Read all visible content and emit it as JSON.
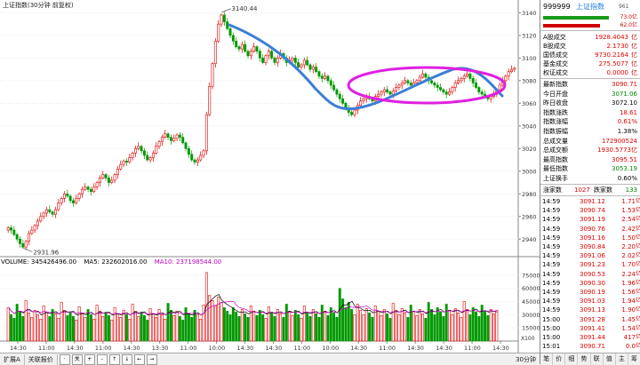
{
  "header": {
    "title": "上证指数(30分钟 前复权)"
  },
  "price_axis": [
    "3140",
    "3120",
    "3100",
    "3080",
    "3060",
    "3040",
    "3020",
    "3000",
    "2980",
    "2960",
    "2940"
  ],
  "annotations": {
    "high": "3140.44",
    "low": "2931.96"
  },
  "volume": {
    "label": "VOLUME: 345426496.00",
    "ma5": "MA5: 232602016.00",
    "ma10": "MA10: 237198544.00",
    "axis": [
      "75000",
      "60000",
      "45000",
      "30000",
      "15000"
    ],
    "unit": "X100"
  },
  "time_axis": [
    "14:30",
    "11:00",
    "14:30",
    "11:00",
    "14:30",
    "13:30",
    "11:00",
    "10:00",
    "14:30",
    "14:30",
    "11:00",
    "10:00",
    "14:30",
    "11:00",
    "14:30",
    "14:30",
    "11:00",
    "14:30"
  ],
  "bottom_bar": {
    "tabs": [
      "扩展A",
      "关联报价"
    ],
    "controls": [
      "·",
      "关",
      "+",
      "-",
      "↑",
      "↓",
      "←",
      "→"
    ],
    "period": "30分钟"
  },
  "quote": {
    "code": "999999",
    "name": "上证指数",
    "badge": "961",
    "bar_top": "73.0亿",
    "bar_bottom": "62.0亿",
    "turnover": [
      {
        "label": "A股成交",
        "value": "1928.4043",
        "unit": "亿"
      },
      {
        "label": "B股成交",
        "value": "2.1730",
        "unit": "亿"
      },
      {
        "label": "国债成交",
        "value": "9730.2164",
        "unit": "亿"
      },
      {
        "label": "基金成交",
        "value": "275.5077",
        "unit": "亿"
      },
      {
        "label": "权证成交",
        "value": "0.0000",
        "unit": "亿"
      }
    ],
    "stats": [
      {
        "label": "最新指数",
        "value": "3090.71",
        "color": "red"
      },
      {
        "label": "今日开盘",
        "value": "3071.06",
        "color": "green"
      },
      {
        "label": "昨日收盘",
        "value": "3072.10",
        "color": "black"
      },
      {
        "label": "指数涨跌",
        "value": "18.61",
        "color": "red"
      },
      {
        "label": "指数涨幅",
        "value": "0.61%",
        "color": "red"
      },
      {
        "label": "指数振幅",
        "value": "1.38%",
        "color": "black"
      },
      {
        "label": "总成交量",
        "value": "172900524",
        "color": "red"
      },
      {
        "label": "总成交额",
        "value": "1930.5773亿",
        "color": "red"
      },
      {
        "label": "最高指数",
        "value": "3095.51",
        "color": "red"
      },
      {
        "label": "最低指数",
        "value": "3053.19",
        "color": "green"
      },
      {
        "label": "上证换手",
        "value": "0.60%",
        "color": "black"
      }
    ],
    "breadth": {
      "up_label": "涨家数",
      "up": "1027",
      "down_label": "跌家数",
      "down": "133"
    },
    "ticks": [
      {
        "t": "14:59",
        "p": "3091.12",
        "v": "1.71"
      },
      {
        "t": "14:59",
        "p": "3090.74",
        "v": "1.53"
      },
      {
        "t": "14:59",
        "p": "3091.19",
        "v": "2.54"
      },
      {
        "t": "14:59",
        "p": "3090.76",
        "v": "2.42"
      },
      {
        "t": "14:59",
        "p": "3091.16",
        "v": "1.50"
      },
      {
        "t": "14:59",
        "p": "3090.84",
        "v": "2.20"
      },
      {
        "t": "14:59",
        "p": "3091.06",
        "v": "2.02"
      },
      {
        "t": "14:59",
        "p": "3091.23",
        "v": "1.70"
      },
      {
        "t": "14:59",
        "p": "3090.53",
        "v": "2.24"
      },
      {
        "t": "14:59",
        "p": "3090.30",
        "v": "1.96"
      },
      {
        "t": "14:59",
        "p": "3090.19",
        "v": "1.56"
      },
      {
        "t": "14:59",
        "p": "3091.03",
        "v": "1.94"
      },
      {
        "t": "14:59",
        "p": "3091.13",
        "v": "1.90"
      },
      {
        "t": "15:00",
        "p": "3091.28",
        "v": "1.45"
      },
      {
        "t": "15:00",
        "p": "3091.41",
        "v": "1.54"
      },
      {
        "t": "15:00",
        "p": "3091.44",
        "v": "417"
      },
      {
        "t": "15:01",
        "p": "3090.71",
        "v": "0.0"
      }
    ],
    "tick_unit": "亿",
    "bottom_tabs": [
      "笔",
      "价",
      "细",
      "势",
      "联",
      "值",
      "主",
      "筹"
    ]
  },
  "chart_data": {
    "type": "candlestick",
    "title": "上证指数(30分钟 前复权)",
    "period": "30分钟",
    "price_range": [
      2930,
      3145
    ],
    "volume_range": [
      0,
      85000
    ],
    "high": 3140.44,
    "low": 2931.96,
    "close_series": [
      2950,
      2948,
      2944,
      2940,
      2936,
      2933,
      2938,
      2945,
      2948,
      2952,
      2956,
      2960,
      2963,
      2966,
      2964,
      2962,
      2966,
      2972,
      2976,
      2980,
      2978,
      2974,
      2972,
      2976,
      2980,
      2984,
      2986,
      2984,
      2982,
      2986,
      2990,
      2994,
      2997,
      2994,
      2990,
      2992,
      2997,
      3002,
      3006,
      3009,
      3008,
      3012,
      3016,
      3020,
      3022,
      3018,
      3014,
      3010,
      3012,
      3016,
      3022,
      3026,
      3030,
      3033,
      3030,
      3027,
      3029,
      3032,
      3030,
      3025,
      3020,
      3015,
      3010,
      3008,
      3010,
      3014,
      3018,
      3050,
      3075,
      3095,
      3115,
      3130,
      3138,
      3132,
      3126,
      3120,
      3115,
      3110,
      3108,
      3112,
      3106,
      3102,
      3106,
      3110,
      3106,
      3100,
      3096,
      3102,
      3106,
      3100,
      3096,
      3100,
      3104,
      3100,
      3096,
      3098,
      3100,
      3096,
      3092,
      3094,
      3098,
      3094,
      3090,
      3092,
      3088,
      3084,
      3082,
      3084,
      3080,
      3076,
      3072,
      3068,
      3064,
      3060,
      3056,
      3052,
      3050,
      3054,
      3058,
      3062,
      3064,
      3066,
      3064,
      3062,
      3066,
      3068,
      3070,
      3072,
      3070,
      3068,
      3071,
      3074,
      3076,
      3078,
      3080,
      3078,
      3076,
      3078,
      3080,
      3083,
      3086,
      3083,
      3080,
      3078,
      3076,
      3074,
      3072,
      3070,
      3068,
      3070,
      3074,
      3078,
      3080,
      3082,
      3084,
      3086,
      3082,
      3078,
      3074,
      3070,
      3068,
      3066,
      3064,
      3066,
      3068,
      3072,
      3076,
      3080,
      3084,
      3088,
      3090,
      3091
    ],
    "volume_series": [
      38000,
      30000,
      26000,
      42000,
      34000,
      28000,
      46000,
      32000,
      27000,
      35000,
      30000,
      25000,
      40000,
      33000,
      28000,
      36000,
      31000,
      26000,
      44000,
      35000,
      29000,
      33000,
      28000,
      24000,
      39000,
      32000,
      27000,
      36000,
      30000,
      25000,
      41000,
      34000,
      28000,
      33000,
      29000,
      24000,
      38000,
      31000,
      27000,
      35000,
      30000,
      25000,
      42000,
      34000,
      28000,
      33000,
      29000,
      24000,
      37000,
      31000,
      27000,
      36000,
      30000,
      25000,
      43000,
      35000,
      29000,
      34000,
      28000,
      24000,
      38000,
      31000,
      27000,
      35000,
      30000,
      25000,
      41000,
      78000,
      52000,
      46000,
      40000,
      50000,
      44000,
      38000,
      34000,
      30000,
      38000,
      33000,
      28000,
      36000,
      31000,
      27000,
      40000,
      34000,
      29000,
      35000,
      30000,
      26000,
      39000,
      33000,
      28000,
      36000,
      31000,
      27000,
      42000,
      34000,
      29000,
      35000,
      30000,
      26000,
      40000,
      33000,
      28000,
      36000,
      31000,
      27000,
      41000,
      34000,
      29000,
      38000,
      32000,
      27000,
      60000,
      48000,
      38000,
      44000,
      36000,
      30000,
      42000,
      35000,
      30000,
      37000,
      32000,
      27000,
      40000,
      34000,
      29000,
      36000,
      31000,
      26000,
      43000,
      35000,
      30000,
      37000,
      32000,
      27000,
      41000,
      34000,
      29000,
      36000,
      31000,
      26000,
      44000,
      36000,
      30000,
      38000,
      33000,
      28000,
      42000,
      35000,
      30000,
      37000,
      32000,
      27000,
      45000,
      36000,
      30000,
      38000,
      33000,
      28000,
      41000,
      34000,
      29000,
      36000,
      31000,
      35000
    ]
  }
}
